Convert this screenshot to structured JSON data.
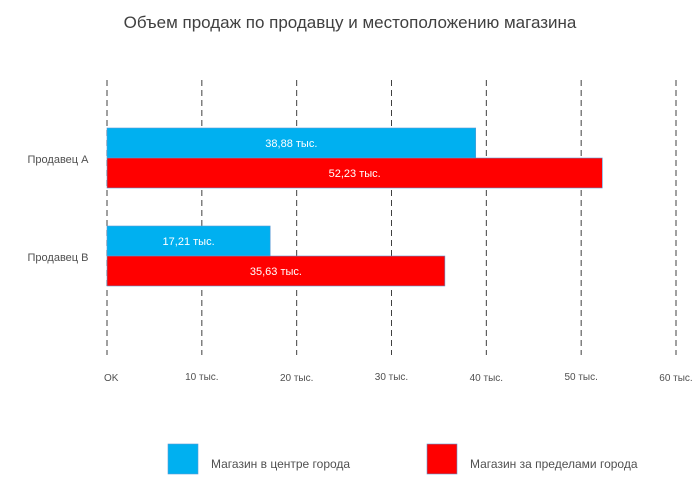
{
  "chart_data": {
    "type": "bar",
    "orientation": "horizontal",
    "title": "Объем продаж по продавцу и местоположению магазина",
    "categories": [
      "Продавец A",
      "Продавец B"
    ],
    "series": [
      {
        "name": "Магазин в центре города",
        "color": "#00B0F0",
        "values": [
          38.88,
          17.21
        ],
        "labels": [
          "38,88 тыс.",
          "17,21 тыс."
        ]
      },
      {
        "name": "Магазин за пределами города",
        "color": "#FF0000",
        "values": [
          52.23,
          35.63
        ],
        "labels": [
          "52,23 тыс.",
          "35,63 тыс."
        ]
      }
    ],
    "xlim": [
      0,
      60
    ],
    "xticks": [
      0,
      10,
      20,
      30,
      40,
      50,
      60
    ],
    "xtick_labels": [
      "OK",
      "10 тыс.",
      "20 тыс.",
      "30 тыс.",
      "40 тыс.",
      "50 тыс.",
      "60 тыс."
    ],
    "grid": "vertical dashed",
    "legend": "bottom",
    "units": "тыс."
  }
}
